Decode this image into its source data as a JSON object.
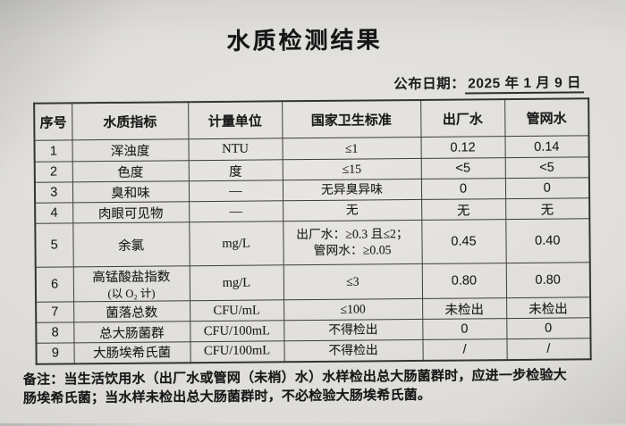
{
  "page": {
    "title": "水质检测结果",
    "date_label": "公布日期：",
    "date_value": "2025 年 1 月 9 日"
  },
  "table": {
    "columns": [
      "序号",
      "水质指标",
      "计量单位",
      "国家卫生标准",
      "出厂水",
      "管网水"
    ],
    "rows": [
      {
        "no": "1",
        "name": "浑浊度",
        "unit": "NTU",
        "std": "≤1",
        "factory": "0.12",
        "network": "0.14"
      },
      {
        "no": "2",
        "name": "色度",
        "unit": "度",
        "std": "≤15",
        "factory": "<5",
        "network": "<5"
      },
      {
        "no": "3",
        "name": "臭和味",
        "unit": "—",
        "std": "无异臭异味",
        "factory": "0",
        "network": "0"
      },
      {
        "no": "4",
        "name": "肉眼可见物",
        "unit": "—",
        "std": "无",
        "factory": "无",
        "network": "无"
      },
      {
        "no": "5",
        "name": "余氯",
        "unit": "mg/L",
        "std": "出厂水：≥0.3 且≤2；",
        "std2": "管网水：≥0.05",
        "factory": "0.45",
        "network": "0.40"
      },
      {
        "no": "6",
        "name": "高锰酸盐指数",
        "name2": "(以 O₂ 计)",
        "unit": "mg/L",
        "std": "≤3",
        "factory": "0.80",
        "network": "0.80"
      },
      {
        "no": "7",
        "name": "菌落总数",
        "unit": "CFU/mL",
        "std": "≤100",
        "factory": "未检出",
        "network": "未检出"
      },
      {
        "no": "8",
        "name": "总大肠菌群",
        "unit": "CFU/100mL",
        "std": "不得检出",
        "factory": "0",
        "network": "0"
      },
      {
        "no": "9",
        "name": "大肠埃希氏菌",
        "unit": "CFU/100mL",
        "std": "不得检出",
        "factory": "/",
        "network": "/"
      }
    ]
  },
  "note": {
    "label": "备注：",
    "lines": [
      "当生活饮用水（出厂水或管网（未梢）水）水样检出总大肠菌群时，应进一步检验大",
      "肠埃希氏菌；当水样未检出总大肠菌群时，不必检验大肠埃希氏菌。"
    ]
  }
}
